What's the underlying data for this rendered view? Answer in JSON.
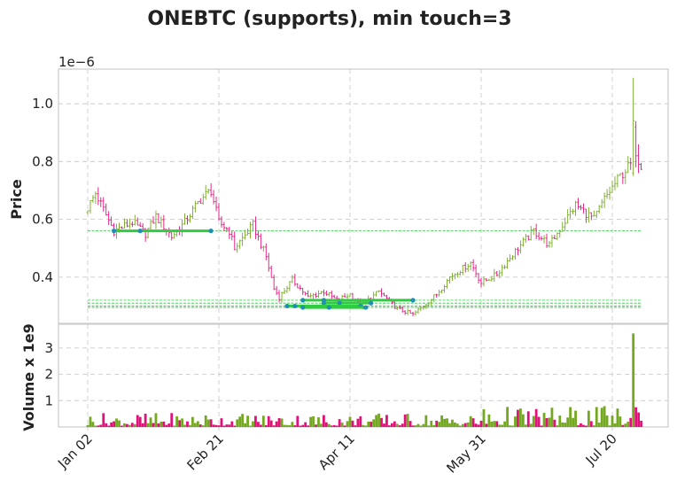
{
  "chart_data": {
    "type": "ohlc",
    "title": "ONEBTC (supports), min touch=3",
    "price_panel": {
      "ylabel": "Price",
      "scale_note": "1e−6",
      "ylim": [
        0.24,
        1.12
      ],
      "yticks": [
        0.4,
        0.6,
        0.8,
        1.0
      ],
      "ytick_labels": [
        "0.4",
        "0.6",
        "0.8",
        "1.0"
      ],
      "grid": true
    },
    "volume_panel": {
      "ylabel": "Volume x 1e9",
      "ylim": [
        0,
        3.9
      ],
      "yticks": [
        1,
        2,
        3
      ],
      "ytick_labels": [
        "1",
        "2",
        "3"
      ],
      "grid": true
    },
    "x_axis": {
      "tick_labels": [
        "Jan 02",
        "Feb 21",
        "Apr 11",
        "May 31",
        "Jul 20"
      ],
      "tick_index": [
        0,
        50,
        100,
        150,
        200
      ],
      "num_bars": 212
    },
    "colors": {
      "up": "#73a820",
      "down": "#e0127a",
      "support": "#2ecc40",
      "touch": "#1f8fb4"
    },
    "anchors": [
      {
        "i": 0,
        "p": 0.64
      },
      {
        "i": 3,
        "p": 0.69
      },
      {
        "i": 10,
        "p": 0.56
      },
      {
        "i": 17,
        "p": 0.59
      },
      {
        "i": 22,
        "p": 0.55
      },
      {
        "i": 26,
        "p": 0.61
      },
      {
        "i": 32,
        "p": 0.54
      },
      {
        "i": 37,
        "p": 0.59
      },
      {
        "i": 43,
        "p": 0.67
      },
      {
        "i": 47,
        "p": 0.7
      },
      {
        "i": 50,
        "p": 0.59
      },
      {
        "i": 54,
        "p": 0.56
      },
      {
        "i": 56,
        "p": 0.5
      },
      {
        "i": 63,
        "p": 0.58
      },
      {
        "i": 68,
        "p": 0.47
      },
      {
        "i": 71,
        "p": 0.36
      },
      {
        "i": 73,
        "p": 0.33
      },
      {
        "i": 78,
        "p": 0.39
      },
      {
        "i": 84,
        "p": 0.33
      },
      {
        "i": 90,
        "p": 0.35
      },
      {
        "i": 95,
        "p": 0.32
      },
      {
        "i": 100,
        "p": 0.34
      },
      {
        "i": 104,
        "p": 0.3
      },
      {
        "i": 111,
        "p": 0.35
      },
      {
        "i": 118,
        "p": 0.29
      },
      {
        "i": 124,
        "p": 0.27
      },
      {
        "i": 133,
        "p": 0.34
      },
      {
        "i": 138,
        "p": 0.4
      },
      {
        "i": 146,
        "p": 0.45
      },
      {
        "i": 150,
        "p": 0.38
      },
      {
        "i": 156,
        "p": 0.41
      },
      {
        "i": 163,
        "p": 0.49
      },
      {
        "i": 170,
        "p": 0.56
      },
      {
        "i": 176,
        "p": 0.51
      },
      {
        "i": 181,
        "p": 0.58
      },
      {
        "i": 186,
        "p": 0.65
      },
      {
        "i": 193,
        "p": 0.6
      },
      {
        "i": 197,
        "p": 0.67
      },
      {
        "i": 203,
        "p": 0.75
      },
      {
        "i": 208,
        "p": 0.8
      },
      {
        "i": 211,
        "p": 0.79
      }
    ],
    "special_bars": [
      {
        "i": 208,
        "high": 1.09,
        "low": 0.75,
        "open": 0.76,
        "close": 0.94,
        "vol": 3.55
      },
      {
        "i": 209,
        "high": 0.94,
        "low": 0.78,
        "open": 0.92,
        "close": 0.82,
        "vol": 0.75
      },
      {
        "i": 210,
        "high": 0.86,
        "low": 0.76,
        "open": 0.82,
        "close": 0.79,
        "vol": 0.55
      }
    ],
    "support_levels": [
      {
        "price": 0.56,
        "start_index": 10,
        "end_index": 47,
        "touch_index": [
          10,
          20,
          47
        ]
      },
      {
        "price": 0.32,
        "start_index": 82,
        "end_index": 124,
        "touch_index": [
          82,
          90,
          124
        ]
      },
      {
        "price": 0.31,
        "start_index": 90,
        "end_index": 108,
        "touch_index": [
          90,
          96,
          108
        ]
      },
      {
        "price": 0.3,
        "start_index": 76,
        "end_index": 104,
        "touch_index": [
          76,
          79,
          104
        ]
      },
      {
        "price": 0.295,
        "start_index": 82,
        "end_index": 106,
        "touch_index": [
          82,
          92,
          106
        ]
      }
    ]
  }
}
